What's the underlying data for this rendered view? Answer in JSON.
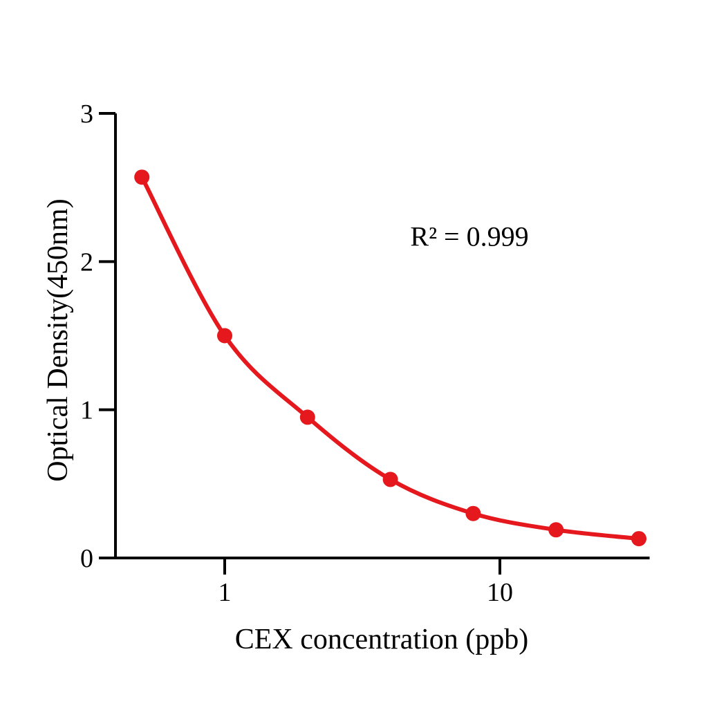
{
  "figure": {
    "background": "#ffffff",
    "annotation": "R² = 0.999",
    "colors": {
      "curve": "#e4181d",
      "axis": "#000000",
      "text": "#000000"
    }
  },
  "chart_data": {
    "type": "line",
    "title": "",
    "xlabel": "CEX concentration (ppb)",
    "ylabel": "Optical Density(450nm)",
    "x_scale": "log",
    "x": [
      0.5,
      1,
      2,
      4,
      8,
      16,
      32
    ],
    "y": [
      2.57,
      1.5,
      0.95,
      0.53,
      0.3,
      0.19,
      0.13
    ],
    "series_name": "CEX standard curve",
    "x_ticks": [
      1,
      10
    ],
    "y_ticks": [
      0,
      1,
      2,
      3
    ],
    "xlim": [
      0.4,
      35
    ],
    "ylim": [
      0,
      3
    ],
    "grid": false,
    "legend": "none",
    "marker": "circle",
    "line_color": "#e4181d",
    "annotations": [
      {
        "text": "R² = 0.999"
      }
    ]
  }
}
